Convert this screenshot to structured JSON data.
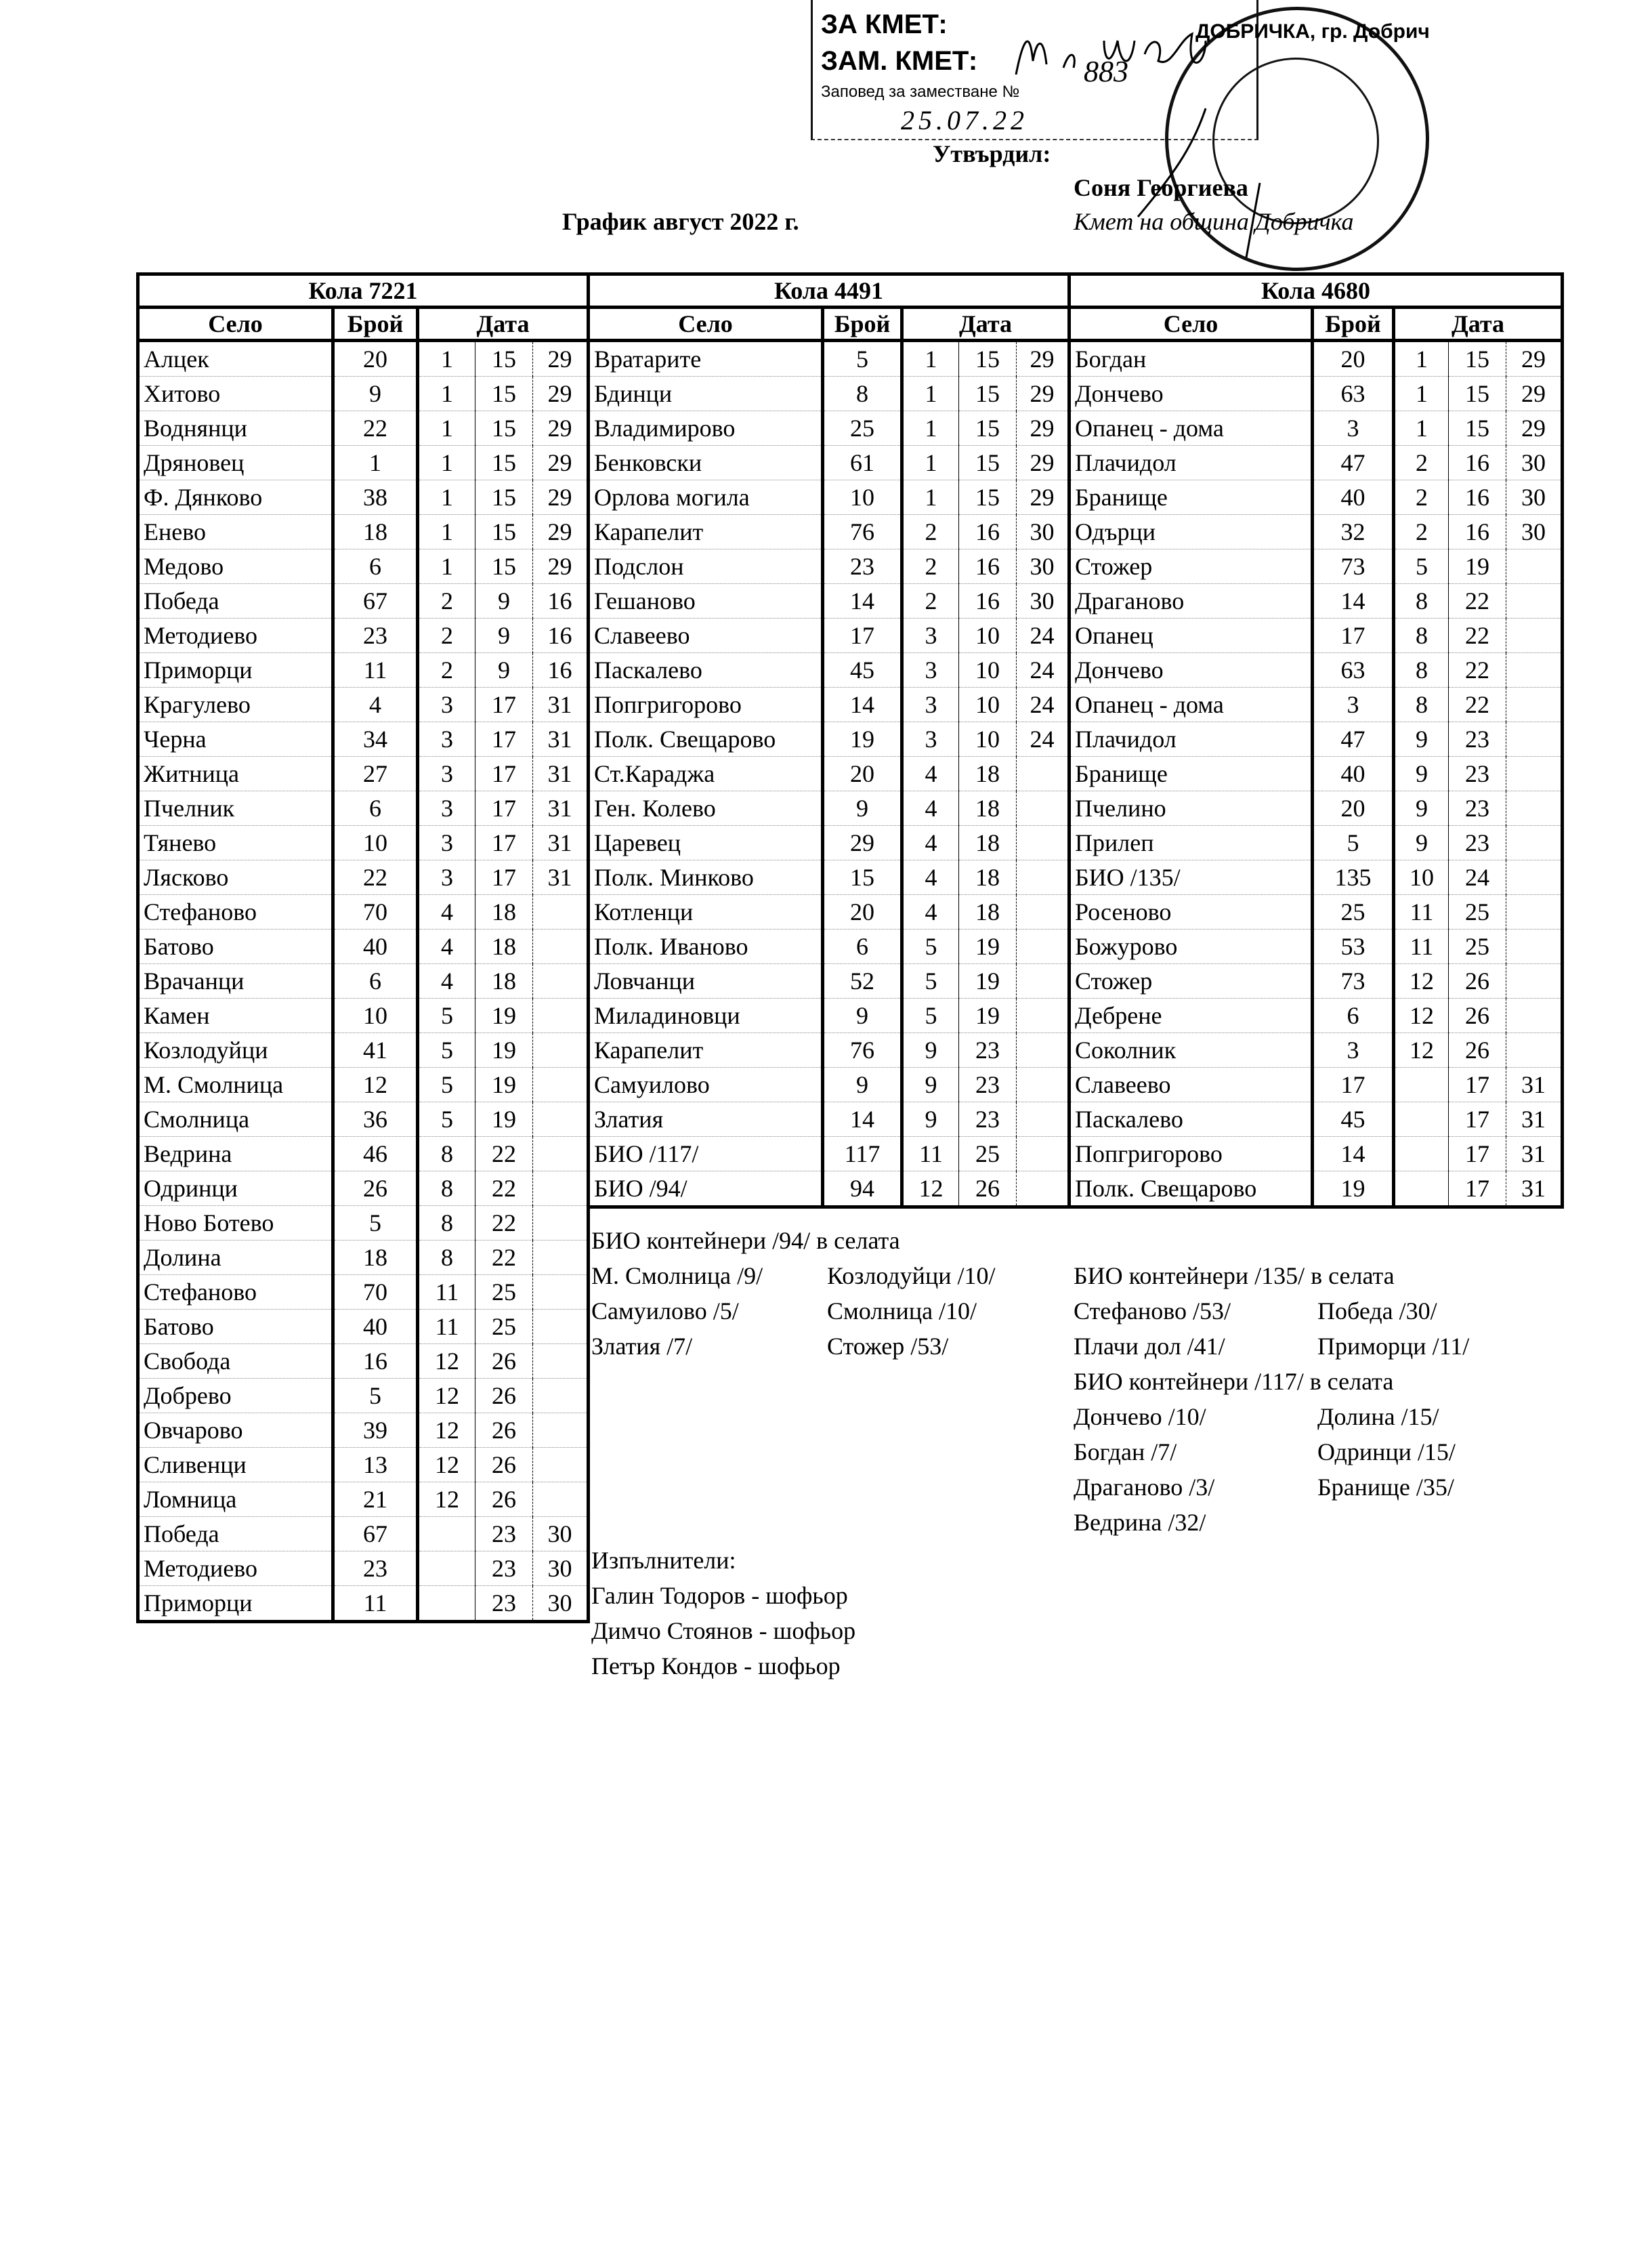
{
  "stamp": {
    "line1": "ЗА КМЕТ:",
    "line2": "ЗАМ. КМЕТ:",
    "line3": "Заповед за заместване №",
    "order_no": "883",
    "date": "25.07.22",
    "seal_text": "ДОБРИЧКА, гр. Добрич"
  },
  "approval": {
    "label": "Утвърдил:",
    "name": "Соня Георгиева",
    "position": "Кмет на община Добричка"
  },
  "title": "График август 2022 г.",
  "headers": {
    "village": "Село",
    "count": "Брой",
    "date": "Дата"
  },
  "tables": [
    {
      "vehicle": "Кола 7221",
      "rows": [
        [
          "Алцек",
          "20",
          "1",
          "15",
          "29"
        ],
        [
          "Хитово",
          "9",
          "1",
          "15",
          "29"
        ],
        [
          "Воднянци",
          "22",
          "1",
          "15",
          "29"
        ],
        [
          "Дряновец",
          "1",
          "1",
          "15",
          "29"
        ],
        [
          "Ф. Дянково",
          "38",
          "1",
          "15",
          "29"
        ],
        [
          "Енево",
          "18",
          "1",
          "15",
          "29"
        ],
        [
          "Медово",
          "6",
          "1",
          "15",
          "29"
        ],
        [
          "Победа",
          "67",
          "2",
          "9",
          "16"
        ],
        [
          "Методиево",
          "23",
          "2",
          "9",
          "16"
        ],
        [
          "Приморци",
          "11",
          "2",
          "9",
          "16"
        ],
        [
          "Крагулево",
          "4",
          "3",
          "17",
          "31"
        ],
        [
          "Черна",
          "34",
          "3",
          "17",
          "31"
        ],
        [
          "Житница",
          "27",
          "3",
          "17",
          "31"
        ],
        [
          "Пчелник",
          "6",
          "3",
          "17",
          "31"
        ],
        [
          "Тянево",
          "10",
          "3",
          "17",
          "31"
        ],
        [
          "Лясково",
          "22",
          "3",
          "17",
          "31"
        ],
        [
          "Стефаново",
          "70",
          "4",
          "18",
          ""
        ],
        [
          "Батово",
          "40",
          "4",
          "18",
          ""
        ],
        [
          "Врачанци",
          "6",
          "4",
          "18",
          ""
        ],
        [
          "Камен",
          "10",
          "5",
          "19",
          ""
        ],
        [
          "Козлодуйци",
          "41",
          "5",
          "19",
          ""
        ],
        [
          "М. Смолница",
          "12",
          "5",
          "19",
          ""
        ],
        [
          "Смолница",
          "36",
          "5",
          "19",
          ""
        ],
        [
          "Ведрина",
          "46",
          "8",
          "22",
          ""
        ],
        [
          "Одринци",
          "26",
          "8",
          "22",
          ""
        ],
        [
          "Ново Ботево",
          "5",
          "8",
          "22",
          ""
        ],
        [
          "Долина",
          "18",
          "8",
          "22",
          ""
        ],
        [
          "Стефаново",
          "70",
          "11",
          "25",
          ""
        ],
        [
          "Батово",
          "40",
          "11",
          "25",
          ""
        ],
        [
          "Свобода",
          "16",
          "12",
          "26",
          ""
        ],
        [
          "Добрево",
          "5",
          "12",
          "26",
          ""
        ],
        [
          "Овчарово",
          "39",
          "12",
          "26",
          ""
        ],
        [
          "Сливенци",
          "13",
          "12",
          "26",
          ""
        ],
        [
          "Ломница",
          "21",
          "12",
          "26",
          ""
        ],
        [
          "Победа",
          "67",
          "",
          "23",
          "30"
        ],
        [
          "Методиево",
          "23",
          "",
          "23",
          "30"
        ],
        [
          "Приморци",
          "11",
          "",
          "23",
          "30"
        ]
      ]
    },
    {
      "vehicle": "Кола 4491",
      "rows": [
        [
          "Вратарите",
          "5",
          "1",
          "15",
          "29"
        ],
        [
          "Бдинци",
          "8",
          "1",
          "15",
          "29"
        ],
        [
          "Владимирово",
          "25",
          "1",
          "15",
          "29"
        ],
        [
          "Бенковски",
          "61",
          "1",
          "15",
          "29"
        ],
        [
          "Орлова могила",
          "10",
          "1",
          "15",
          "29"
        ],
        [
          "Карапелит",
          "76",
          "2",
          "16",
          "30"
        ],
        [
          "Подслон",
          "23",
          "2",
          "16",
          "30"
        ],
        [
          "Гешаново",
          "14",
          "2",
          "16",
          "30"
        ],
        [
          "Славеево",
          "17",
          "3",
          "10",
          "24"
        ],
        [
          "Паскалево",
          "45",
          "3",
          "10",
          "24"
        ],
        [
          "Попгригорово",
          "14",
          "3",
          "10",
          "24"
        ],
        [
          "Полк. Свещарово",
          "19",
          "3",
          "10",
          "24"
        ],
        [
          "Ст.Караджа",
          "20",
          "4",
          "18",
          ""
        ],
        [
          "Ген. Колево",
          "9",
          "4",
          "18",
          ""
        ],
        [
          "Царевец",
          "29",
          "4",
          "18",
          ""
        ],
        [
          "Полк. Минково",
          "15",
          "4",
          "18",
          ""
        ],
        [
          "Котленци",
          "20",
          "4",
          "18",
          ""
        ],
        [
          "Полк. Иваново",
          "6",
          "5",
          "19",
          ""
        ],
        [
          "Ловчанци",
          "52",
          "5",
          "19",
          ""
        ],
        [
          "Миладиновци",
          "9",
          "5",
          "19",
          ""
        ],
        [
          "Карапелит",
          "76",
          "9",
          "23",
          ""
        ],
        [
          "Самуилово",
          "9",
          "9",
          "23",
          ""
        ],
        [
          "Златия",
          "14",
          "9",
          "23",
          ""
        ],
        [
          "БИО /117/",
          "117",
          "11",
          "25",
          ""
        ],
        [
          "БИО /94/",
          "94",
          "12",
          "26",
          ""
        ]
      ]
    },
    {
      "vehicle": "Кола 4680",
      "rows": [
        [
          "Богдан",
          "20",
          "1",
          "15",
          "29"
        ],
        [
          "Дончево",
          "63",
          "1",
          "15",
          "29"
        ],
        [
          "Опанец - дома",
          "3",
          "1",
          "15",
          "29"
        ],
        [
          "Плачидол",
          "47",
          "2",
          "16",
          "30"
        ],
        [
          "Бранище",
          "40",
          "2",
          "16",
          "30"
        ],
        [
          "Одърци",
          "32",
          "2",
          "16",
          "30"
        ],
        [
          "Стожер",
          "73",
          "5",
          "19",
          ""
        ],
        [
          "Драганово",
          "14",
          "8",
          "22",
          ""
        ],
        [
          "Опанец",
          "17",
          "8",
          "22",
          ""
        ],
        [
          "Дончево",
          "63",
          "8",
          "22",
          ""
        ],
        [
          "Опанец - дома",
          "3",
          "8",
          "22",
          ""
        ],
        [
          "Плачидол",
          "47",
          "9",
          "23",
          ""
        ],
        [
          "Бранище",
          "40",
          "9",
          "23",
          ""
        ],
        [
          "Пчелино",
          "20",
          "9",
          "23",
          ""
        ],
        [
          "Прилеп",
          "5",
          "9",
          "23",
          ""
        ],
        [
          "БИО /135/",
          "135",
          "10",
          "24",
          ""
        ],
        [
          "Росеново",
          "25",
          "11",
          "25",
          ""
        ],
        [
          "Божурово",
          "53",
          "11",
          "25",
          ""
        ],
        [
          "Стожер",
          "73",
          "12",
          "26",
          ""
        ],
        [
          "Дебрене",
          "6",
          "12",
          "26",
          ""
        ],
        [
          "Соколник",
          "3",
          "12",
          "26",
          ""
        ],
        [
          "Славеево",
          "17",
          "",
          "17",
          "31"
        ],
        [
          "Паскалево",
          "45",
          "",
          "17",
          "31"
        ],
        [
          "Попгригорово",
          "14",
          "",
          "17",
          "31"
        ],
        [
          "Полк. Свещарово",
          "19",
          "",
          "17",
          "31"
        ]
      ]
    }
  ],
  "notes_94": {
    "heading": "БИО контейнери /94/ в селата",
    "items": [
      [
        "М. Смолница /9/",
        "Козлодуйци /10/"
      ],
      [
        "Самуилово /5/",
        "Смолница /10/"
      ],
      [
        "Златия /7/",
        "Стожер /53/"
      ]
    ]
  },
  "notes_135": {
    "heading": "БИО контейнери /135/ в селата",
    "items": [
      [
        "Стефаново /53/",
        "Победа /30/"
      ],
      [
        "Плачи дол /41/",
        "Приморци /11/"
      ]
    ]
  },
  "notes_117": {
    "heading": "БИО контейнери /117/ в селата",
    "items": [
      [
        "Дончево /10/",
        "Долина /15/"
      ],
      [
        "Богдан /7/",
        "Одринци /15/"
      ],
      [
        "Драганово /3/",
        "Бранище /35/"
      ],
      [
        "Ведрина /32/",
        ""
      ]
    ]
  },
  "executors": {
    "heading": "Изпълнители:",
    "items": [
      "Галин Тодоров - шофьор",
      "Димчо Стоянов - шофьор",
      "Петър Кондов - шофьор"
    ]
  }
}
